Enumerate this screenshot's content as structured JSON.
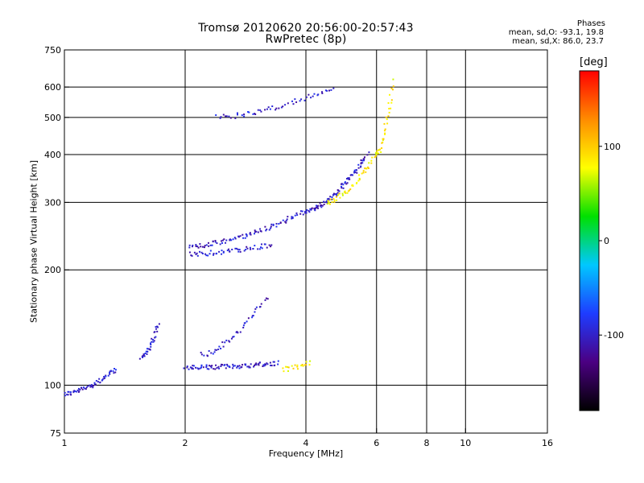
{
  "chart_data": {
    "type": "scatter",
    "title": "Tromsø 20120620 20:56:00-20:57:43",
    "subtitle": "RwPretec (8p)",
    "xlabel": "Frequency [MHz]",
    "ylabel": "Stationary phase Virtual Height [km]",
    "x_scale": "log",
    "y_scale": "log",
    "xlim": [
      1,
      16
    ],
    "ylim": [
      75,
      750
    ],
    "x_ticks": [
      1,
      2,
      4,
      6,
      8,
      10,
      16
    ],
    "y_ticks": [
      75,
      100,
      200,
      300,
      400,
      500,
      600,
      750
    ],
    "grid": true,
    "stats": {
      "title": "Phases",
      "o_mode": "mean, sd,O: -93.1, 19.8",
      "x_mode": "mean, sd,X: 86.0, 23.7"
    },
    "colorbar": {
      "label": "[deg]",
      "range": [
        -180,
        180
      ],
      "ticks": [
        -100,
        0,
        100
      ],
      "colors": [
        "#000000",
        "#4b0082",
        "#1e3cff",
        "#00c8ff",
        "#00e000",
        "#ffff00",
        "#ff8c00",
        "#ff0000"
      ]
    },
    "series": [
      {
        "mode": "O",
        "phase_deg": -100,
        "traces": [
          {
            "x_range": [
              1.0,
              1.35
            ],
            "y_range": [
              95,
              110
            ],
            "n": 60
          },
          {
            "x_range": [
              1.55,
              1.72
            ],
            "y_range": [
              118,
              145
            ],
            "n": 35
          },
          {
            "x_range": [
              2.0,
              3.4
            ],
            "y_range": [
              111,
              114
            ],
            "n": 90
          },
          {
            "x_range": [
              2.05,
              3.3
            ],
            "y_range": [
              220,
              232
            ],
            "n": 55
          },
          {
            "x_range": [
              2.05,
              4.0
            ],
            "y_range": [
              230,
              285
            ],
            "n": 90
          },
          {
            "x_range": [
              4.0,
              5.7
            ],
            "y_range": [
              285,
              400
            ],
            "n": 90
          },
          {
            "x_range": [
              2.4,
              4.7
            ],
            "y_range": [
              500,
              600
            ],
            "n": 55
          },
          {
            "x_range": [
              2.2,
              3.2
            ],
            "y_range": [
              120,
              170
            ],
            "n": 45
          }
        ]
      },
      {
        "mode": "X",
        "phase_deg": 86,
        "traces": [
          {
            "x_range": [
              3.5,
              4.1
            ],
            "y_range": [
              110,
              115
            ],
            "n": 20
          },
          {
            "x_range": [
              4.5,
              6.0
            ],
            "y_range": [
              300,
              400
            ],
            "n": 50
          },
          {
            "x_range": [
              6.0,
              6.6
            ],
            "y_range": [
              400,
              620
            ],
            "n": 35
          }
        ]
      }
    ]
  }
}
